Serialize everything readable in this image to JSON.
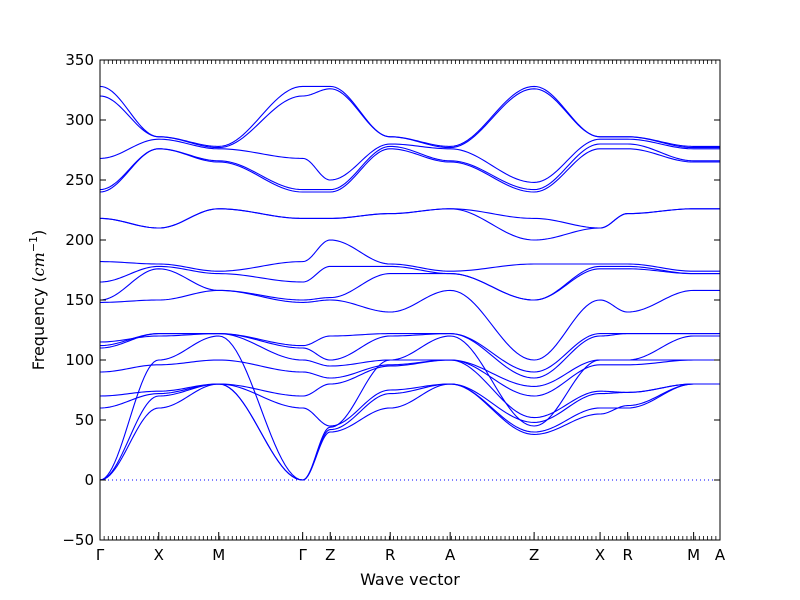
{
  "chart_data": {
    "type": "line",
    "title": "",
    "xlabel": "Wave vector",
    "ylabel_main": "Frequency (",
    "ylabel_unit": "cm",
    "ylabel_exp": "−1",
    "ylabel_close": ")",
    "ylim": [
      -50,
      350
    ],
    "yticks": [
      -50,
      0,
      50,
      100,
      150,
      200,
      250,
      300,
      350
    ],
    "xlim": [
      0,
      10.34
    ],
    "high_symmetry_points": [
      {
        "label": "Γ",
        "x": 0.0
      },
      {
        "label": "X",
        "x": 0.98
      },
      {
        "label": "M",
        "x": 1.98
      },
      {
        "label": "Γ",
        "x": 3.38
      },
      {
        "label": "Z",
        "x": 3.84
      },
      {
        "label": "R",
        "x": 4.84
      },
      {
        "label": "A",
        "x": 5.84
      },
      {
        "label": "Z",
        "x": 7.24
      },
      {
        "label": "X",
        "x": 8.34
      },
      {
        "label": "R",
        "x": 8.8
      },
      {
        "label": "M",
        "x": 9.9
      },
      {
        "label": "A",
        "x": 10.34
      }
    ],
    "series_color": "#0000ff",
    "zero_line": {
      "y": 0,
      "style": "dotted",
      "color": "#0000ff"
    },
    "series": [
      {
        "x": [
          0,
          0.98,
          1.98,
          3.38,
          3.84,
          4.84,
          5.84,
          7.24,
          8.34,
          8.8,
          9.9,
          10.34
        ],
        "values": [
          0,
          60,
          80,
          0,
          40,
          60,
          80,
          40,
          60,
          60,
          80,
          80
        ]
      },
      {
        "x": [
          0,
          0.98,
          1.98,
          3.38,
          3.84,
          4.84,
          5.84,
          7.24,
          8.34,
          8.8,
          9.9,
          10.34
        ],
        "values": [
          0,
          70,
          80,
          0,
          42,
          72,
          80,
          38,
          55,
          62,
          80,
          80
        ]
      },
      {
        "x": [
          0,
          0.98,
          1.98,
          3.38,
          3.84,
          4.84,
          5.84,
          7.24,
          8.34,
          8.8,
          9.9,
          10.34
        ],
        "values": [
          0,
          100,
          120,
          0,
          44,
          100,
          120,
          45,
          100,
          100,
          120,
          120
        ]
      },
      {
        "x": [
          0,
          0.98,
          1.98,
          3.38,
          3.84,
          4.84,
          5.84,
          7.24,
          8.34,
          8.8,
          9.9,
          10.34
        ],
        "values": [
          60,
          72,
          80,
          60,
          45,
          75,
          80,
          48,
          72,
          73,
          80,
          80
        ]
      },
      {
        "x": [
          0,
          0.98,
          1.98,
          3.38,
          3.84,
          4.84,
          5.84,
          7.24,
          8.34,
          8.8,
          9.9,
          10.34
        ],
        "values": [
          70,
          74,
          80,
          70,
          80,
          95,
          100,
          52,
          74,
          73,
          80,
          80
        ]
      },
      {
        "x": [
          0,
          0.98,
          1.98,
          3.38,
          3.84,
          4.84,
          5.84,
          7.24,
          8.34,
          8.8,
          9.9,
          10.34
        ],
        "values": [
          90,
          96,
          100,
          90,
          85,
          96,
          100,
          70,
          96,
          96,
          100,
          100
        ]
      },
      {
        "x": [
          0,
          0.98,
          1.98,
          3.38,
          3.84,
          4.84,
          5.84,
          7.24,
          8.34,
          8.8,
          9.9,
          10.34
        ],
        "values": [
          110,
          122,
          122,
          100,
          95,
          100,
          100,
          78,
          100,
          100,
          100,
          100
        ]
      },
      {
        "x": [
          0,
          0.98,
          1.98,
          3.38,
          3.84,
          4.84,
          5.84,
          7.24,
          8.34,
          8.8,
          9.9,
          10.34
        ],
        "values": [
          112,
          122,
          122,
          110,
          100,
          120,
          122,
          85,
          120,
          122,
          122,
          122
        ]
      },
      {
        "x": [
          0,
          0.98,
          1.98,
          3.38,
          3.84,
          4.84,
          5.84,
          7.24,
          8.34,
          8.8,
          9.9,
          10.34
        ],
        "values": [
          115,
          120,
          122,
          112,
          120,
          122,
          122,
          90,
          122,
          122,
          122,
          122
        ]
      },
      {
        "x": [
          0,
          0.98,
          1.98,
          3.38,
          3.84,
          4.84,
          5.84,
          7.24,
          8.34,
          8.8,
          9.9,
          10.34
        ],
        "values": [
          148,
          150,
          158,
          148,
          150,
          140,
          158,
          100,
          150,
          140,
          158,
          158
        ]
      },
      {
        "x": [
          0,
          0.98,
          1.98,
          3.38,
          3.84,
          4.84,
          5.84,
          7.24,
          8.34,
          8.8,
          9.9,
          10.34
        ],
        "values": [
          150,
          176,
          158,
          150,
          152,
          172,
          172,
          150,
          176,
          176,
          172,
          172
        ]
      },
      {
        "x": [
          0,
          0.98,
          1.98,
          3.38,
          3.84,
          4.84,
          5.84,
          7.24,
          8.34,
          8.8,
          9.9,
          10.34
        ],
        "values": [
          165,
          178,
          172,
          165,
          178,
          178,
          172,
          150,
          178,
          178,
          172,
          172
        ]
      },
      {
        "x": [
          0,
          0.98,
          1.98,
          3.38,
          3.84,
          4.84,
          5.84,
          7.24,
          8.34,
          8.8,
          9.9,
          10.34
        ],
        "values": [
          182,
          180,
          174,
          182,
          200,
          180,
          174,
          180,
          180,
          180,
          174,
          174
        ]
      },
      {
        "x": [
          0,
          0.98,
          1.98,
          3.38,
          3.84,
          4.84,
          5.84,
          7.24,
          8.34,
          8.8,
          9.9,
          10.34
        ],
        "values": [
          218,
          210,
          226,
          218,
          218,
          222,
          226,
          200,
          210,
          222,
          226,
          226
        ]
      },
      {
        "x": [
          0,
          0.98,
          1.98,
          3.38,
          3.84,
          4.84,
          5.84,
          7.24,
          8.34,
          8.8,
          9.9,
          10.34
        ],
        "values": [
          218,
          210,
          226,
          218,
          218,
          222,
          226,
          218,
          210,
          222,
          226,
          226
        ]
      },
      {
        "x": [
          0,
          0.98,
          1.98,
          3.38,
          3.84,
          4.84,
          5.84,
          7.24,
          8.34,
          8.8,
          9.9,
          10.34
        ],
        "values": [
          240,
          276,
          265,
          240,
          240,
          276,
          265,
          240,
          276,
          276,
          265,
          265
        ]
      },
      {
        "x": [
          0,
          0.98,
          1.98,
          3.38,
          3.84,
          4.84,
          5.84,
          7.24,
          8.34,
          8.8,
          9.9,
          10.34
        ],
        "values": [
          242,
          276,
          266,
          242,
          242,
          278,
          266,
          242,
          280,
          280,
          266,
          266
        ]
      },
      {
        "x": [
          0,
          0.98,
          1.98,
          3.38,
          3.84,
          4.84,
          5.84,
          7.24,
          8.34,
          8.8,
          9.9,
          10.34
        ],
        "values": [
          268,
          284,
          276,
          268,
          250,
          280,
          276,
          248,
          284,
          284,
          276,
          276
        ]
      },
      {
        "x": [
          0,
          0.98,
          1.98,
          3.38,
          3.84,
          4.84,
          5.84,
          7.24,
          8.34,
          8.8,
          9.9,
          10.34
        ],
        "values": [
          320,
          286,
          277,
          320,
          326,
          286,
          277,
          326,
          286,
          286,
          277,
          277
        ]
      },
      {
        "x": [
          0,
          0.98,
          1.98,
          3.38,
          3.84,
          4.84,
          5.84,
          7.24,
          8.34,
          8.8,
          9.9,
          10.34
        ],
        "values": [
          328,
          286,
          278,
          328,
          328,
          286,
          278,
          328,
          286,
          286,
          278,
          278
        ]
      }
    ]
  }
}
